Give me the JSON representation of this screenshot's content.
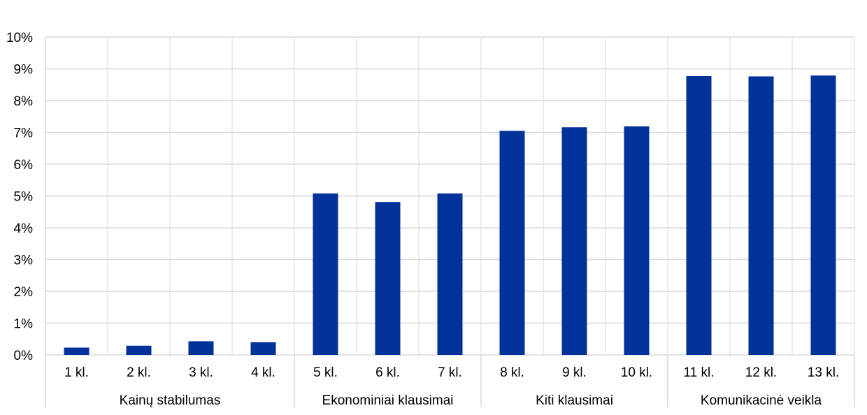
{
  "chart_data": {
    "type": "bar",
    "title": "",
    "xlabel": "",
    "ylabel": "",
    "ylim": [
      0,
      10
    ],
    "y_ticks": [
      "0%",
      "1%",
      "2%",
      "3%",
      "4%",
      "5%",
      "6%",
      "7%",
      "8%",
      "9%",
      "10%"
    ],
    "grid": true,
    "bar_color": "#003299",
    "categories": [
      "1 kl.",
      "2 kl.",
      "3 kl.",
      "4 kl.",
      "5 kl.",
      "6 kl.",
      "7 kl.",
      "8 kl.",
      "9 kl.",
      "10 kl.",
      "11 kl.",
      "12 kl.",
      "13 kl."
    ],
    "values": [
      0.23,
      0.29,
      0.43,
      0.4,
      5.08,
      4.81,
      5.08,
      7.05,
      7.16,
      7.19,
      8.77,
      8.76,
      8.79
    ],
    "groups": [
      {
        "label": "Kainų stabilumas",
        "count": 4
      },
      {
        "label": "Ekonominiai klausimai",
        "count": 3
      },
      {
        "label": "Kiti klausimai",
        "count": 3
      },
      {
        "label": "Komunikacinė veikla",
        "count": 3
      }
    ]
  }
}
